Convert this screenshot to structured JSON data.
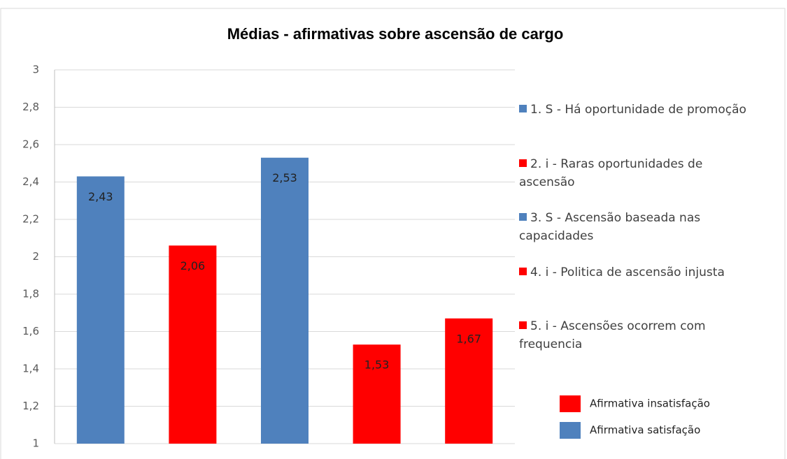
{
  "chart_data": {
    "type": "bar",
    "title": "Médias - afirmativas sobre  ascensão de cargo",
    "categories": [
      "1. S - Há oportunidade de promoção",
      "2. i - Raras oportunidades de ascensão",
      "3. S - Ascensão baseada nas capacidades",
      "4. i - Politica de ascensão injusta",
      "5. i - Ascensões ocorrem com frequencia"
    ],
    "values": [
      2.43,
      2.06,
      2.53,
      1.53,
      1.67
    ],
    "value_labels": [
      "2,43",
      "2,06",
      "2,53",
      "1,53",
      "1,67"
    ],
    "colors": [
      "#4f81bd",
      "#ff0000",
      "#4f81bd",
      "#ff0000",
      "#ff0000"
    ],
    "ylim": [
      1,
      3
    ],
    "yticks": [
      1,
      {
        "value": 1.2,
        "label": "1,2"
      },
      {
        "value": 1.4,
        "label": "1,4"
      },
      {
        "value": 1.6,
        "label": "1,6"
      },
      {
        "value": 1.8,
        "label": "1,8"
      },
      2,
      {
        "value": 2.2,
        "label": "2,2"
      },
      {
        "value": 2.4,
        "label": "2,4"
      },
      {
        "value": 2.6,
        "label": "2,6"
      },
      {
        "value": 2.8,
        "label": "2,8"
      },
      3
    ],
    "grid": true,
    "legend": "right",
    "key": [
      {
        "label": "Afirmativa insatisfação",
        "color": "#ff0000"
      },
      {
        "label": "Afirmativa satisfação",
        "color": "#4f81bd"
      }
    ]
  }
}
